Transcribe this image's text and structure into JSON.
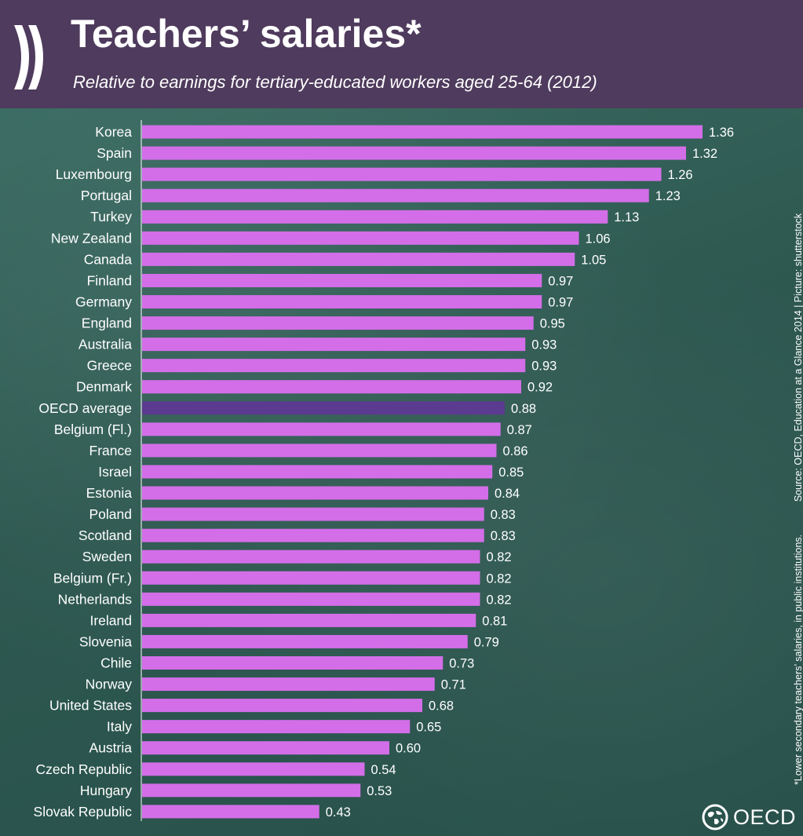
{
  "header": {
    "title": "Teachers’ salaries*",
    "subtitle": "Relative to earnings for tertiary-educated workers aged 25-64 (2012)"
  },
  "footnote": "*Lower secondary teachers’ salaries, in public institutions.",
  "source": "Source: OECD, Education at a Glance 2014 | Picture: shutterstock",
  "logo_text": "OECD",
  "colors": {
    "header_bg": "#4f3b5d",
    "bar": "#d36ee8",
    "highlight_bar": "#5b3b8f",
    "text": "#ffffff"
  },
  "chart_data": {
    "type": "bar",
    "orientation": "horizontal",
    "title": "Teachers’ salaries*",
    "subtitle": "Relative to earnings for tertiary-educated workers aged 25-64 (2012)",
    "categories": [
      "Korea",
      "Spain",
      "Luxembourg",
      "Portugal",
      "Turkey",
      "New Zealand",
      "Canada",
      "Finland",
      "Germany",
      "England",
      "Australia",
      "Greece",
      "Denmark",
      "OECD average",
      "Belgium (Fl.)",
      "France",
      "Israel",
      "Estonia",
      "Poland",
      "Scotland",
      "Sweden",
      "Belgium (Fr.)",
      "Netherlands",
      "Ireland",
      "Slovenia",
      "Chile",
      "Norway",
      "United States",
      "Italy",
      "Austria",
      "Czech Republic",
      "Hungary",
      "Slovak Republic"
    ],
    "values": [
      1.36,
      1.32,
      1.26,
      1.23,
      1.13,
      1.06,
      1.05,
      0.97,
      0.97,
      0.95,
      0.93,
      0.93,
      0.92,
      0.88,
      0.87,
      0.86,
      0.85,
      0.84,
      0.83,
      0.83,
      0.82,
      0.82,
      0.82,
      0.81,
      0.79,
      0.73,
      0.71,
      0.68,
      0.65,
      0.6,
      0.54,
      0.53,
      0.43
    ],
    "value_labels": [
      "1.36",
      "1.32",
      "1.26",
      "1.23",
      "1.13",
      "1.06",
      "1.05",
      "0.97",
      "0.97",
      "0.95",
      "0.93",
      "0.93",
      "0.92",
      "0.88",
      "0.87",
      "0.86",
      "0.85",
      "0.84",
      "0.83",
      "0.83",
      "0.82",
      "0.82",
      "0.82",
      "0.81",
      "0.79",
      "0.73",
      "0.71",
      "0.68",
      "0.65",
      "0.60",
      "0.54",
      "0.53",
      "0.43"
    ],
    "highlight": "OECD average",
    "xlim": [
      0,
      1.36
    ],
    "grid": false,
    "legend": "none"
  }
}
